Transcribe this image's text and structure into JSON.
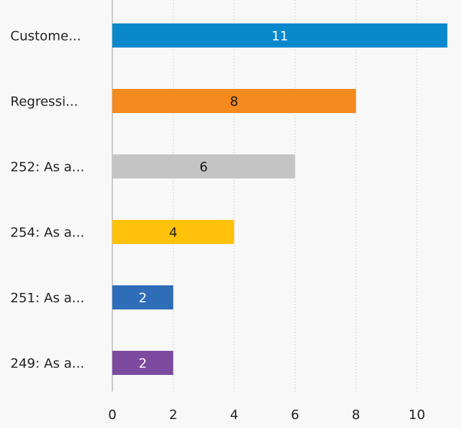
{
  "chart_data": {
    "type": "bar",
    "orientation": "horizontal",
    "categories": [
      "Custome...",
      "Regressi...",
      "252: As a...",
      "254: As a...",
      "251: As a...",
      "249: As a..."
    ],
    "values": [
      11,
      8,
      6,
      4,
      2,
      2
    ],
    "colors": [
      "#0a88cc",
      "#f58a1f",
      "#c4c4c4",
      "#ffc10a",
      "#2f6db8",
      "#7c4a9e"
    ],
    "data_label_colors": [
      "#ffffff",
      "#1a1a1a",
      "#1a1a1a",
      "#1a1a1a",
      "#ffffff",
      "#ffffff"
    ],
    "xlim": [
      0,
      11
    ],
    "xticks": [
      0,
      2,
      4,
      6,
      8,
      10
    ],
    "grid": "vertical dotted",
    "title": "",
    "xlabel": "",
    "ylabel": ""
  }
}
